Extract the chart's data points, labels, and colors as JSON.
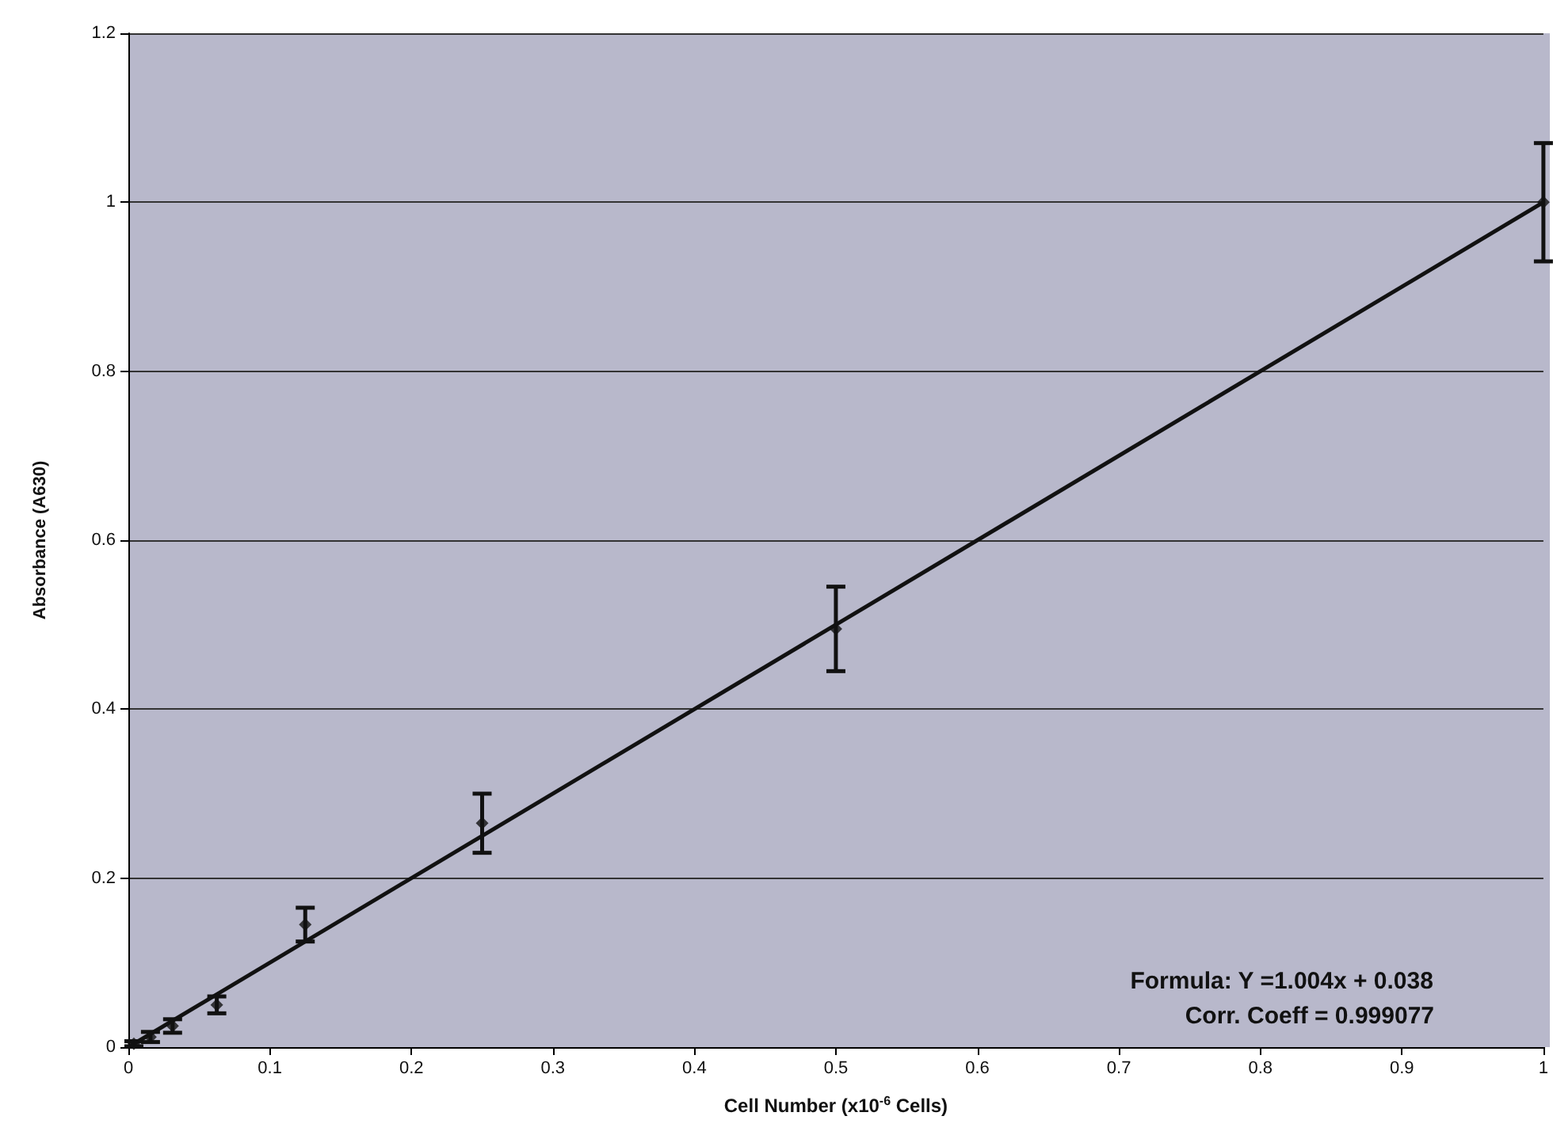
{
  "chart_data": {
    "type": "scatter",
    "xlabel": "Cell Number (x10$^{-6}$ Cells)",
    "ylabel": "Absorbance (A630)",
    "series": [
      {
        "color": "#111111",
        "marker": "diamond",
        "x": [
          0.0039,
          0.015625,
          0.03125,
          0.0625,
          0.125,
          0.25,
          0.5,
          1.0
        ],
        "values": [
          0.004,
          0.012,
          0.025,
          0.05,
          0.145,
          0.265,
          0.495,
          1.0
        ],
        "errors": [
          0.003,
          0.006,
          0.008,
          0.01,
          0.02,
          0.035,
          0.05,
          0.07
        ]
      },
      {
        "type": "line",
        "color": "#111111",
        "marker": "none",
        "x": [
          0,
          1
        ],
        "values": [
          0,
          1
        ]
      }
    ],
    "xlim": [
      0,
      1
    ],
    "xticks": [
      0,
      0.1,
      0.2,
      0.3,
      0.4,
      0.5,
      0.6,
      0.7,
      0.8,
      0.9,
      1
    ],
    "ylim": [
      0,
      1.2
    ],
    "yticks": [
      0,
      0.2,
      0.4,
      0.6,
      0.8,
      1,
      1.2
    ],
    "grid": "y",
    "annotations": [
      "Formula: Y =1.004x + 0.038",
      "Corr. Coeff = 0.999077"
    ]
  }
}
